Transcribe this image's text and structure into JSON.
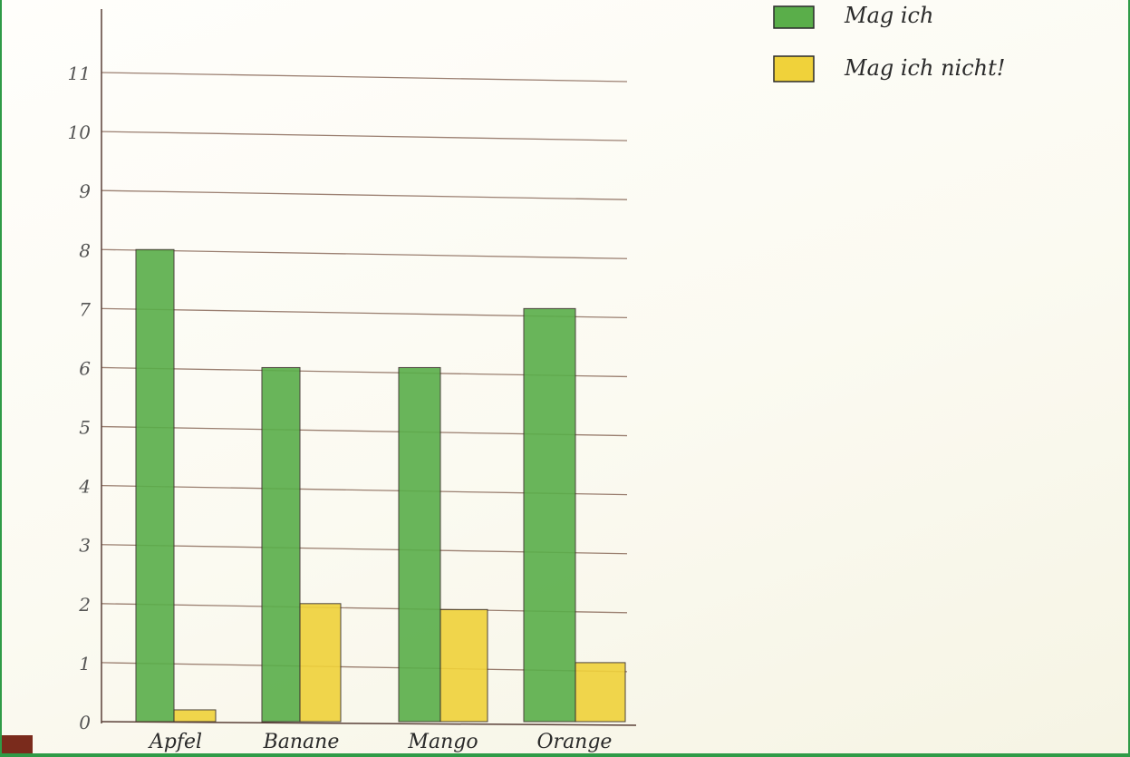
{
  "chart_data": {
    "type": "bar",
    "categories": [
      "Apfel",
      "Banane",
      "Mango",
      "Orange"
    ],
    "series": [
      {
        "name": "Mag ich",
        "values": [
          8,
          6,
          6,
          7
        ],
        "color": "#5aae4a"
      },
      {
        "name": "Mag ich nicht!",
        "values": [
          0.2,
          2,
          1.9,
          1
        ],
        "color": "#f0d23a"
      }
    ],
    "yticks": [
      "0",
      "1",
      "2",
      "3",
      "4",
      "5",
      "6",
      "7",
      "8",
      "9",
      "10",
      "11"
    ],
    "ylim": [
      0,
      11
    ],
    "grid": true,
    "legend": "top-right"
  }
}
